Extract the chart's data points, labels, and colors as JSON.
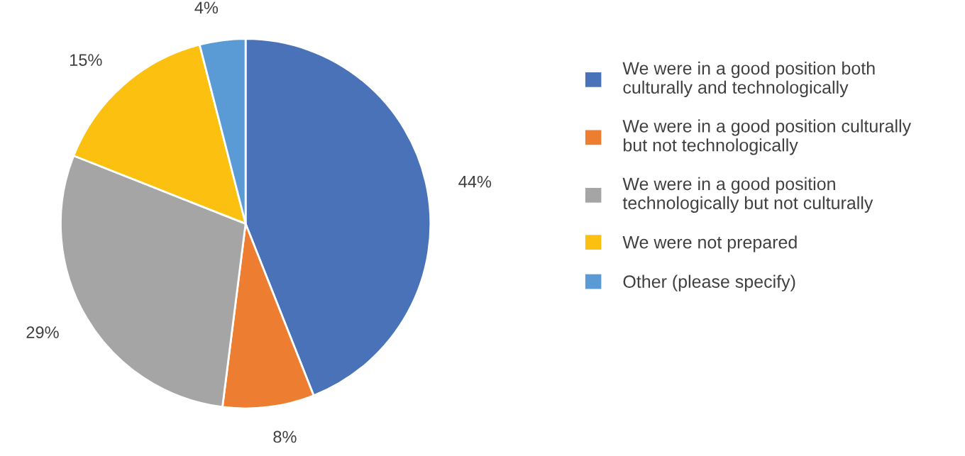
{
  "chart_data": {
    "type": "pie",
    "categories": [
      "We were in a good position both culturally and technologically",
      "We were in a good position culturally but not technologically",
      "We were in a good position technologically but not culturally",
      "We were not prepared",
      "Other (please specify)"
    ],
    "values": [
      44,
      8,
      29,
      15,
      4
    ],
    "colors": [
      "#4a72b8",
      "#ed7d31",
      "#a5a5a5",
      "#fcc010",
      "#5b9bd5"
    ],
    "value_labels": [
      "44%",
      "8%",
      "29%",
      "15%",
      "4%"
    ],
    "legend": "right"
  }
}
